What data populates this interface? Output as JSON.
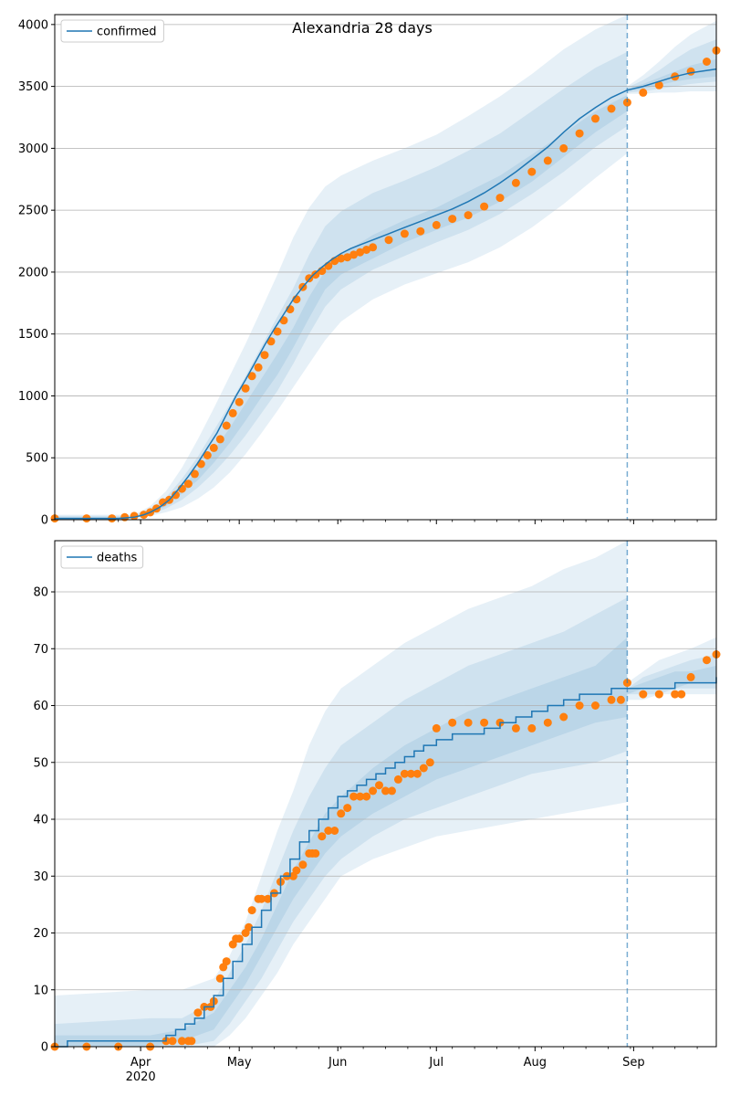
{
  "colors": {
    "model_line": "#1f77b4",
    "band": "#1f77b4",
    "observed": "#ff7f0e",
    "grid": "#b0b0b0",
    "forecast_marker": "#1f77b4"
  },
  "chart_data": [
    {
      "type": "line",
      "title": "Alexandria 28 days",
      "legend": {
        "position": "top-left",
        "entries": [
          "confirmed"
        ]
      },
      "grid": "horizontal",
      "xlim": [
        0,
        208
      ],
      "ylim": [
        0,
        4080
      ],
      "yticks": [
        0,
        500,
        1000,
        1500,
        2000,
        2500,
        3000,
        3500,
        4000
      ],
      "forecast_start_day": 180,
      "series": [
        {
          "name": "confirmed",
          "kind": "model",
          "x": [
            0,
            20,
            25,
            28,
            30,
            33,
            36,
            39,
            42,
            45,
            48,
            51,
            54,
            57,
            60,
            63,
            66,
            69,
            72,
            75,
            78,
            81,
            84,
            87,
            90,
            93,
            96,
            100,
            105,
            110,
            115,
            120,
            125,
            130,
            135,
            140,
            145,
            150,
            155,
            160,
            165,
            170,
            175,
            180,
            185,
            190,
            195,
            200,
            208
          ],
          "values": [
            10,
            10,
            20,
            40,
            60,
            100,
            160,
            250,
            350,
            460,
            580,
            700,
            850,
            1000,
            1130,
            1270,
            1410,
            1540,
            1660,
            1780,
            1880,
            1970,
            2040,
            2100,
            2150,
            2190,
            2220,
            2260,
            2310,
            2360,
            2410,
            2460,
            2510,
            2570,
            2640,
            2720,
            2810,
            2910,
            3010,
            3130,
            3240,
            3330,
            3410,
            3470,
            3500,
            3540,
            3580,
            3610,
            3640
          ]
        },
        {
          "name": "confirmed-observed",
          "kind": "observed",
          "x": [
            0,
            10,
            18,
            22,
            25,
            28,
            30,
            32,
            34,
            36,
            38,
            40,
            42,
            44,
            46,
            48,
            50,
            52,
            54,
            56,
            58,
            60,
            62,
            64,
            66,
            68,
            70,
            72,
            74,
            76,
            78,
            80,
            82,
            84,
            86,
            88,
            90,
            92,
            94,
            96,
            98,
            100,
            105,
            110,
            115,
            120,
            125,
            130,
            135,
            140,
            145,
            150,
            155,
            160,
            165,
            170,
            175,
            180,
            185,
            190,
            195,
            200,
            205,
            208
          ],
          "values": [
            10,
            10,
            10,
            20,
            30,
            40,
            60,
            90,
            140,
            160,
            200,
            250,
            290,
            370,
            450,
            520,
            580,
            650,
            760,
            860,
            950,
            1060,
            1160,
            1230,
            1330,
            1440,
            1520,
            1610,
            1700,
            1780,
            1880,
            1950,
            1980,
            2010,
            2050,
            2090,
            2110,
            2120,
            2140,
            2160,
            2180,
            2200,
            2260,
            2310,
            2330,
            2380,
            2430,
            2460,
            2530,
            2600,
            2720,
            2810,
            2900,
            3000,
            3120,
            3240,
            3320,
            3370,
            3450,
            3510,
            3580,
            3620,
            3700,
            3790
          ]
        }
      ],
      "bands": [
        {
          "x": [
            0,
            25,
            30,
            35,
            40,
            45,
            50,
            55,
            60,
            65,
            70,
            75,
            80,
            85,
            90,
            100,
            110,
            120,
            130,
            140,
            150,
            160,
            170,
            180
          ],
          "lower": [
            0,
            10,
            30,
            60,
            100,
            170,
            260,
            380,
            530,
            700,
            880,
            1070,
            1260,
            1450,
            1600,
            1780,
            1900,
            1990,
            2080,
            2200,
            2360,
            2550,
            2760,
            2960
          ],
          "upper": [
            40,
            40,
            110,
            230,
            420,
            650,
            900,
            1160,
            1420,
            1700,
            1980,
            2280,
            2520,
            2690,
            2780,
            2900,
            3000,
            3110,
            3260,
            3420,
            3600,
            3800,
            3960,
            4080
          ]
        },
        {
          "x": [
            0,
            25,
            30,
            35,
            40,
            45,
            50,
            55,
            60,
            65,
            70,
            75,
            80,
            85,
            90,
            100,
            110,
            120,
            130,
            140,
            150,
            160,
            170,
            180
          ],
          "lower": [
            0,
            15,
            40,
            90,
            160,
            260,
            380,
            520,
            680,
            860,
            1040,
            1260,
            1500,
            1720,
            1860,
            2020,
            2130,
            2240,
            2340,
            2470,
            2630,
            2810,
            3010,
            3180
          ],
          "upper": [
            30,
            30,
            90,
            180,
            330,
            510,
            720,
            930,
            1160,
            1400,
            1640,
            1870,
            2140,
            2370,
            2490,
            2640,
            2740,
            2850,
            2980,
            3120,
            3300,
            3480,
            3650,
            3780
          ]
        },
        {
          "x": [
            0,
            25,
            30,
            35,
            40,
            45,
            50,
            55,
            60,
            65,
            70,
            75,
            80,
            85,
            90,
            100,
            110,
            120,
            130,
            140,
            150,
            160,
            170,
            180
          ],
          "lower": [
            0,
            18,
            50,
            110,
            210,
            320,
            460,
            620,
            800,
            990,
            1170,
            1390,
            1630,
            1860,
            1980,
            2110,
            2240,
            2340,
            2440,
            2570,
            2730,
            2930,
            3130,
            3300
          ],
          "upper": [
            20,
            22,
            70,
            140,
            260,
            400,
            560,
            740,
            940,
            1140,
            1340,
            1550,
            1800,
            2010,
            2140,
            2300,
            2420,
            2520,
            2650,
            2780,
            2950,
            3120,
            3300,
            3430
          ]
        },
        {
          "x": [
            180,
            185,
            190,
            195,
            200,
            208
          ],
          "lower": [
            3440,
            3440,
            3450,
            3450,
            3460,
            3460
          ],
          "upper": [
            3500,
            3590,
            3700,
            3820,
            3920,
            4030
          ]
        },
        {
          "x": [
            180,
            185,
            190,
            195,
            200,
            208
          ],
          "lower": [
            3450,
            3460,
            3480,
            3500,
            3520,
            3540
          ],
          "upper": [
            3490,
            3550,
            3630,
            3720,
            3800,
            3880
          ]
        },
        {
          "x": [
            180,
            185,
            190,
            195,
            200,
            208
          ],
          "lower": [
            3460,
            3480,
            3510,
            3540,
            3560,
            3580
          ],
          "upper": [
            3480,
            3520,
            3570,
            3620,
            3670,
            3720
          ]
        }
      ]
    },
    {
      "type": "line",
      "title": "",
      "legend": {
        "position": "top-left",
        "entries": [
          "deaths"
        ]
      },
      "grid": "horizontal",
      "xlim": [
        0,
        208
      ],
      "ylim": [
        0,
        89
      ],
      "yticks": [
        0,
        10,
        20,
        30,
        40,
        50,
        60,
        70,
        80
      ],
      "forecast_start_day": 180,
      "xticks": [
        {
          "day": 27,
          "label": "Apr",
          "sublabel": "2020"
        },
        {
          "day": 58,
          "label": "May"
        },
        {
          "day": 89,
          "label": "Jun"
        },
        {
          "day": 120,
          "label": "Jul"
        },
        {
          "day": 151,
          "label": "Aug"
        },
        {
          "day": 182,
          "label": "Sep"
        }
      ],
      "series": [
        {
          "name": "deaths",
          "kind": "model",
          "step": true,
          "x": [
            0,
            4,
            30,
            35,
            38,
            41,
            44,
            47,
            50,
            53,
            56,
            59,
            62,
            65,
            68,
            71,
            74,
            77,
            80,
            83,
            86,
            89,
            92,
            95,
            98,
            101,
            104,
            107,
            110,
            113,
            116,
            120,
            125,
            130,
            135,
            140,
            145,
            150,
            155,
            160,
            165,
            170,
            175,
            180,
            185,
            190,
            195,
            200,
            208
          ],
          "values": [
            0,
            1,
            1,
            2,
            3,
            4,
            5,
            7,
            9,
            12,
            15,
            18,
            21,
            24,
            27,
            30,
            33,
            36,
            38,
            40,
            42,
            44,
            45,
            46,
            47,
            48,
            49,
            50,
            51,
            52,
            53,
            54,
            55,
            55,
            56,
            57,
            58,
            59,
            60,
            61,
            62,
            62,
            63,
            63,
            63,
            63,
            64,
            64,
            65
          ]
        },
        {
          "name": "deaths-observed",
          "kind": "observed",
          "x": [
            0,
            10,
            20,
            30,
            35,
            37,
            40,
            42,
            43,
            45,
            47,
            49,
            50,
            52,
            53,
            54,
            56,
            57,
            58,
            60,
            61,
            62,
            64,
            65,
            67,
            69,
            71,
            73,
            75,
            76,
            78,
            80,
            81,
            82,
            84,
            86,
            88,
            90,
            92,
            94,
            96,
            98,
            100,
            102,
            104,
            106,
            108,
            110,
            112,
            114,
            116,
            118,
            120,
            125,
            130,
            135,
            140,
            145,
            150,
            155,
            160,
            165,
            170,
            175,
            178,
            180,
            185,
            190,
            195,
            197,
            200,
            205,
            208
          ],
          "values": [
            0,
            0,
            0,
            0,
            1,
            1,
            1,
            1,
            1,
            6,
            7,
            7,
            8,
            12,
            14,
            15,
            18,
            19,
            19,
            20,
            21,
            24,
            26,
            26,
            26,
            27,
            29,
            30,
            30,
            31,
            32,
            34,
            34,
            34,
            37,
            38,
            38,
            41,
            42,
            44,
            44,
            44,
            45,
            46,
            45,
            45,
            47,
            48,
            48,
            48,
            49,
            50,
            56,
            57,
            57,
            57,
            57,
            56,
            56,
            57,
            58,
            60,
            60,
            61,
            61,
            64,
            62,
            62,
            62,
            62,
            65,
            68,
            69
          ]
        }
      ],
      "bands": [
        {
          "x": [
            0,
            30,
            40,
            50,
            55,
            60,
            65,
            70,
            75,
            80,
            85,
            90,
            100,
            110,
            120,
            130,
            140,
            150,
            160,
            170,
            180
          ],
          "lower": [
            0,
            0,
            0,
            0,
            2,
            5,
            9,
            13,
            18,
            22,
            26,
            30,
            33,
            35,
            37,
            38,
            39,
            40,
            41,
            42,
            43
          ],
          "upper": [
            9,
            10,
            10,
            12,
            16,
            22,
            30,
            38,
            45,
            53,
            59,
            63,
            67,
            71,
            74,
            77,
            79,
            81,
            84,
            86,
            89
          ]
        },
        {
          "x": [
            0,
            30,
            40,
            50,
            55,
            60,
            65,
            70,
            75,
            80,
            85,
            90,
            100,
            110,
            120,
            130,
            140,
            150,
            160,
            170,
            180
          ],
          "lower": [
            0,
            0,
            0,
            1,
            4,
            8,
            12,
            17,
            22,
            26,
            30,
            33,
            37,
            40,
            42,
            44,
            46,
            48,
            49,
            50,
            52
          ],
          "upper": [
            4,
            5,
            5,
            8,
            13,
            18,
            24,
            31,
            38,
            44,
            49,
            53,
            57,
            61,
            64,
            67,
            69,
            71,
            73,
            76,
            79
          ]
        },
        {
          "x": [
            0,
            30,
            40,
            50,
            55,
            60,
            65,
            70,
            75,
            80,
            85,
            90,
            100,
            110,
            120,
            130,
            140,
            150,
            160,
            170,
            180
          ],
          "lower": [
            0,
            0,
            1,
            3,
            7,
            11,
            16,
            21,
            26,
            30,
            34,
            37,
            41,
            44,
            47,
            49,
            51,
            53,
            55,
            57,
            58
          ],
          "upper": [
            2,
            2,
            3,
            6,
            10,
            14,
            19,
            25,
            31,
            36,
            41,
            44,
            49,
            53,
            56,
            59,
            61,
            63,
            65,
            67,
            72
          ]
        },
        {
          "x": [
            180,
            185,
            190,
            195,
            200,
            208
          ],
          "lower": [
            61,
            61,
            62,
            62,
            62,
            62
          ],
          "upper": [
            64,
            66,
            68,
            69,
            70,
            72
          ]
        },
        {
          "x": [
            180,
            185,
            190,
            195,
            200,
            208
          ],
          "lower": [
            62,
            62,
            62,
            63,
            63,
            63
          ],
          "upper": [
            63,
            65,
            66,
            67,
            68,
            69
          ]
        },
        {
          "x": [
            180,
            185,
            190,
            195,
            200,
            208
          ],
          "lower": [
            62,
            63,
            63,
            63,
            64,
            64
          ],
          "upper": [
            63,
            64,
            65,
            66,
            66,
            67
          ]
        }
      ]
    }
  ]
}
